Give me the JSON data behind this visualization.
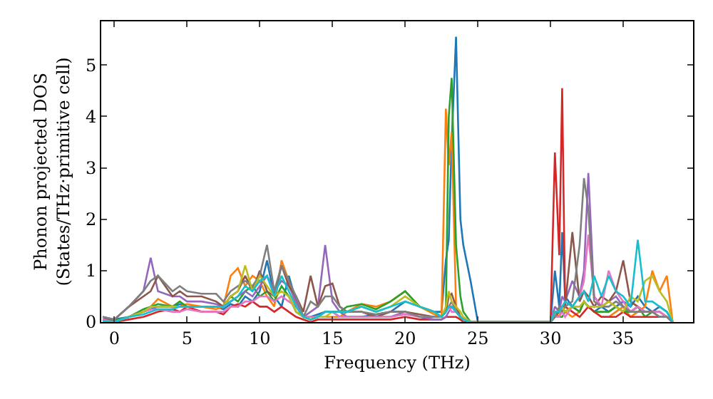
{
  "chart_data": {
    "type": "line",
    "xlabel": "Frequency (THz)",
    "ylabel": "Phonon projected DOS\n(States/THz·primitive cell)",
    "x": [
      -0.8,
      0,
      1,
      2,
      2.5,
      3,
      4,
      4.5,
      5,
      6,
      7,
      7.5,
      8,
      8.5,
      9,
      9.5,
      10,
      10.5,
      11,
      11.5,
      12,
      12.5,
      13,
      13.5,
      14,
      14.5,
      15,
      15.5,
      16,
      17,
      18,
      19,
      20,
      21,
      22,
      22.5,
      22.8,
      23,
      23.2,
      23.5,
      23.8,
      24,
      24.5,
      25,
      30,
      30.3,
      30.6,
      30.8,
      31,
      31.5,
      32,
      32.3,
      32.6,
      33,
      33.5,
      34,
      34.5,
      35,
      35.5,
      36,
      36.5,
      37,
      37.5,
      38,
      38.4
    ],
    "series": [
      {
        "color": "#1f77b4",
        "values": [
          0.1,
          0.05,
          0.1,
          0.2,
          0.25,
          0.3,
          0.3,
          0.35,
          0.3,
          0.3,
          0.3,
          0.25,
          0.35,
          0.3,
          0.5,
          0.4,
          0.6,
          1.2,
          0.5,
          0.3,
          0.9,
          0.4,
          0.1,
          0.1,
          0.15,
          0.2,
          0.2,
          0.1,
          0.1,
          0.1,
          0.15,
          0.2,
          0.4,
          0.3,
          0.2,
          0.2,
          1.2,
          1.6,
          3.5,
          5.55,
          2.0,
          1.5,
          0.8,
          0,
          0,
          1.0,
          0.3,
          1.75,
          0.5,
          0.3,
          0.2,
          0.4,
          0.3,
          0.2,
          0.3,
          0.2,
          0.3,
          0.4,
          0.3,
          0.5,
          0.3,
          0.2,
          0.3,
          0.2,
          0
        ]
      },
      {
        "color": "#ff7f0e",
        "values": [
          null,
          null,
          null,
          0.2,
          0.3,
          0.45,
          0.3,
          0.3,
          0.35,
          0.3,
          0.25,
          0.3,
          0.9,
          1.05,
          0.7,
          0.9,
          0.8,
          0.5,
          0.3,
          1.2,
          0.8,
          0.3,
          0.1,
          0.05,
          0.1,
          0.1,
          0.1,
          0.1,
          0.2,
          0.35,
          0.3,
          0.4,
          0.6,
          0.3,
          0.15,
          0.1,
          4.15,
          3.05,
          3.7,
          0.3,
          0.1,
          0.05,
          0,
          0,
          0,
          0.2,
          0.1,
          0.3,
          0.2,
          0.1,
          0.2,
          0.4,
          0.3,
          0.2,
          0.1,
          0.1,
          0.2,
          0.3,
          0.1,
          0.2,
          0.3,
          1.0,
          0.6,
          0.9,
          0
        ]
      },
      {
        "color": "#2ca02c",
        "values": [
          0.05,
          0.02,
          0.1,
          0.25,
          0.3,
          0.35,
          0.3,
          0.4,
          0.3,
          0.3,
          0.3,
          0.3,
          0.5,
          0.4,
          0.6,
          0.7,
          0.5,
          0.6,
          0.4,
          0.7,
          0.5,
          0.2,
          0.1,
          0.05,
          0.1,
          0.2,
          0.2,
          0.2,
          0.3,
          0.35,
          0.25,
          0.4,
          0.6,
          0.3,
          0.2,
          0.1,
          0.2,
          4.0,
          4.75,
          1.5,
          0.5,
          0.2,
          0,
          0,
          0,
          0.1,
          0.1,
          0.1,
          0.2,
          0.3,
          0.2,
          0.4,
          0.3,
          0.2,
          0.2,
          0.2,
          0.3,
          0.2,
          0.2,
          0.3,
          0.1,
          0.2,
          0.2,
          0.1,
          0
        ]
      },
      {
        "color": "#d62728",
        "values": [
          0.05,
          0,
          0.05,
          0.1,
          0.15,
          0.2,
          0.25,
          0.2,
          0.3,
          0.2,
          0.2,
          0.15,
          0.3,
          0.35,
          0.3,
          0.4,
          0.3,
          0.3,
          0.2,
          0.3,
          0.2,
          0.1,
          0.05,
          0,
          0.05,
          0.05,
          0.05,
          0.05,
          0.05,
          0.05,
          0.05,
          0.05,
          0.1,
          0.05,
          0.05,
          0.05,
          0.1,
          0.1,
          0.1,
          0.1,
          0.05,
          0,
          0,
          0,
          0,
          3.3,
          1.3,
          4.55,
          0.3,
          0.2,
          0.1,
          0.2,
          0.3,
          0.2,
          0.1,
          0.1,
          0.1,
          0.2,
          0.1,
          0.1,
          0.1,
          0.1,
          0.1,
          0.1,
          0
        ]
      },
      {
        "color": "#9467bd",
        "values": [
          0.1,
          0.05,
          0.3,
          0.6,
          1.25,
          0.6,
          0.5,
          0.5,
          0.4,
          0.4,
          0.35,
          0.3,
          0.4,
          0.5,
          0.6,
          0.5,
          0.7,
          0.9,
          0.6,
          0.8,
          0.7,
          0.4,
          0.1,
          0.2,
          0.3,
          1.5,
          0.4,
          0.2,
          0.1,
          0.1,
          0.1,
          0.1,
          0.2,
          0.1,
          0.05,
          0.05,
          0.1,
          0.2,
          0.3,
          0.2,
          0.1,
          0.05,
          0,
          0,
          0,
          0.3,
          0.2,
          0.5,
          0.4,
          0.8,
          0.5,
          1.0,
          2.9,
          0.5,
          0.3,
          0.4,
          0.5,
          0.3,
          0.2,
          0.3,
          0.2,
          0.2,
          0.2,
          0.1,
          0
        ]
      },
      {
        "color": "#8c564b",
        "values": [
          0.05,
          0.05,
          0.3,
          0.5,
          0.6,
          0.9,
          0.5,
          0.6,
          0.5,
          0.5,
          0.4,
          0.3,
          0.5,
          0.6,
          0.9,
          0.6,
          1.0,
          0.6,
          0.5,
          1.1,
          0.7,
          0.5,
          0.2,
          0.9,
          0.3,
          0.7,
          0.75,
          0.3,
          0.2,
          0.2,
          0.1,
          0.2,
          0.2,
          0.15,
          0.1,
          0.1,
          0.2,
          0.5,
          0.55,
          0.3,
          0.1,
          0.05,
          0,
          0,
          0,
          0.1,
          0.2,
          0.3,
          0.3,
          1.75,
          0.4,
          0.6,
          0.5,
          0.3,
          0.5,
          0.4,
          0.6,
          1.2,
          0.4,
          0.3,
          0.2,
          0.2,
          0.1,
          0.1,
          0
        ]
      },
      {
        "color": "#e377c2",
        "values": [
          0.05,
          0,
          0.1,
          0.2,
          0.25,
          0.25,
          0.2,
          0.2,
          0.25,
          0.2,
          0.2,
          0.2,
          0.3,
          0.3,
          0.4,
          0.4,
          0.5,
          0.5,
          0.4,
          0.5,
          0.4,
          0.3,
          0.1,
          0.1,
          0.1,
          0.2,
          0.2,
          0.1,
          0.1,
          0.1,
          0.1,
          0.1,
          0.15,
          0.1,
          0.1,
          0.1,
          0.2,
          0.3,
          0.2,
          0.2,
          0.1,
          0.05,
          0,
          0,
          0,
          0.1,
          0.1,
          0.2,
          0.1,
          0.3,
          0.5,
          0.8,
          1.7,
          0.5,
          0.3,
          1.0,
          0.6,
          0.4,
          0.2,
          0.3,
          0.2,
          0.2,
          0.2,
          0.1,
          0
        ]
      },
      {
        "color": "#7f7f7f",
        "values": [
          0.1,
          0.05,
          0.3,
          0.6,
          0.8,
          0.9,
          0.6,
          0.7,
          0.6,
          0.55,
          0.55,
          0.4,
          0.6,
          0.7,
          0.8,
          0.7,
          0.9,
          1.5,
          0.6,
          1.1,
          0.8,
          0.5,
          0.1,
          0.4,
          0.3,
          0.5,
          0.5,
          0.3,
          0.2,
          0.2,
          0.15,
          0.2,
          0.2,
          0.1,
          0.1,
          0.1,
          0.2,
          0.3,
          0.4,
          0.2,
          0.1,
          0.05,
          0,
          0,
          0,
          0.1,
          0.3,
          0.2,
          0.3,
          0.4,
          1.5,
          2.8,
          2.2,
          0.4,
          0.3,
          0.3,
          0.4,
          0.3,
          0.2,
          0.2,
          0.2,
          0.2,
          0.1,
          0.1,
          0
        ]
      },
      {
        "color": "#bcbd22",
        "values": [
          0.02,
          0,
          0.1,
          0.2,
          0.3,
          0.3,
          0.3,
          0.3,
          0.3,
          0.3,
          0.3,
          0.3,
          0.5,
          0.6,
          1.1,
          0.6,
          0.9,
          0.7,
          0.5,
          0.6,
          0.5,
          0.2,
          0.1,
          0.05,
          0.1,
          0.1,
          0.2,
          0.2,
          0.2,
          0.3,
          0.2,
          0.3,
          0.5,
          0.3,
          0.2,
          0.1,
          0.3,
          0.6,
          0.4,
          0.3,
          0.2,
          0.1,
          0,
          0,
          0,
          0.2,
          0.2,
          0.3,
          0.2,
          0.3,
          0.3,
          0.4,
          0.3,
          0.3,
          0.3,
          0.4,
          0.3,
          0.2,
          0.5,
          0.4,
          0.8,
          0.9,
          0.6,
          0.4,
          0
        ]
      },
      {
        "color": "#17becf",
        "values": [
          0.02,
          0,
          0.1,
          0.15,
          0.2,
          0.25,
          0.25,
          0.3,
          0.3,
          0.3,
          0.3,
          0.3,
          0.4,
          0.5,
          0.7,
          0.6,
          0.8,
          0.9,
          0.5,
          0.9,
          0.6,
          0.3,
          0.1,
          0.05,
          0.1,
          0.2,
          0.2,
          0.2,
          0.2,
          0.3,
          0.2,
          0.3,
          0.4,
          0.3,
          0.2,
          0.1,
          0.2,
          0.3,
          0.3,
          0.2,
          0.1,
          0.05,
          0,
          0,
          0,
          0.2,
          0.2,
          0.3,
          0.4,
          0.3,
          0.5,
          0.6,
          0.4,
          0.9,
          0.5,
          0.9,
          0.6,
          0.5,
          0.3,
          1.6,
          0.4,
          0.4,
          0.3,
          0.2,
          0
        ]
      }
    ],
    "xlim": [
      -0.9,
      39.8
    ],
    "ylim": [
      0,
      5.85
    ],
    "xticks": [
      0,
      5,
      10,
      15,
      20,
      25,
      30,
      35
    ],
    "yticks": [
      0,
      1,
      2,
      3,
      4,
      5
    ],
    "grid": false,
    "marker": "none",
    "line_style": "solid"
  }
}
